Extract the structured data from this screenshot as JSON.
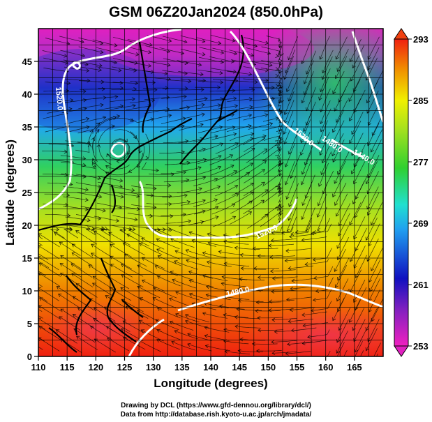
{
  "title": "GSM 06Z20Jan2024 (850.0hPa)",
  "x_axis": {
    "label": "Longitude (degrees)",
    "range": [
      110,
      170
    ],
    "ticks": [
      110,
      115,
      120,
      125,
      130,
      135,
      140,
      145,
      150,
      155,
      160,
      165
    ]
  },
  "y_axis": {
    "label": "Latitude  (degrees)",
    "range": [
      0,
      50
    ],
    "ticks": [
      0,
      5,
      10,
      15,
      20,
      25,
      30,
      35,
      40,
      45
    ]
  },
  "colorbar": {
    "ticks": [
      253,
      261,
      269,
      277,
      285,
      293
    ],
    "range": [
      253,
      293
    ],
    "colors": [
      "#e020c0",
      "#1010c0",
      "#20d0f0",
      "#30d030",
      "#f0f000",
      "#f04010"
    ]
  },
  "contour_labels": [
    "1520.0",
    "1520.0",
    "1520.0",
    "1480.0",
    "1440.0",
    "1480.0"
  ],
  "credits": {
    "line1": "Drawing by DCL (https://www.gfd-dennou.org/library/dcl/)",
    "line2": "Data from http://database.rish.kyoto-u.ac.jp/arch/jmadata/"
  }
}
